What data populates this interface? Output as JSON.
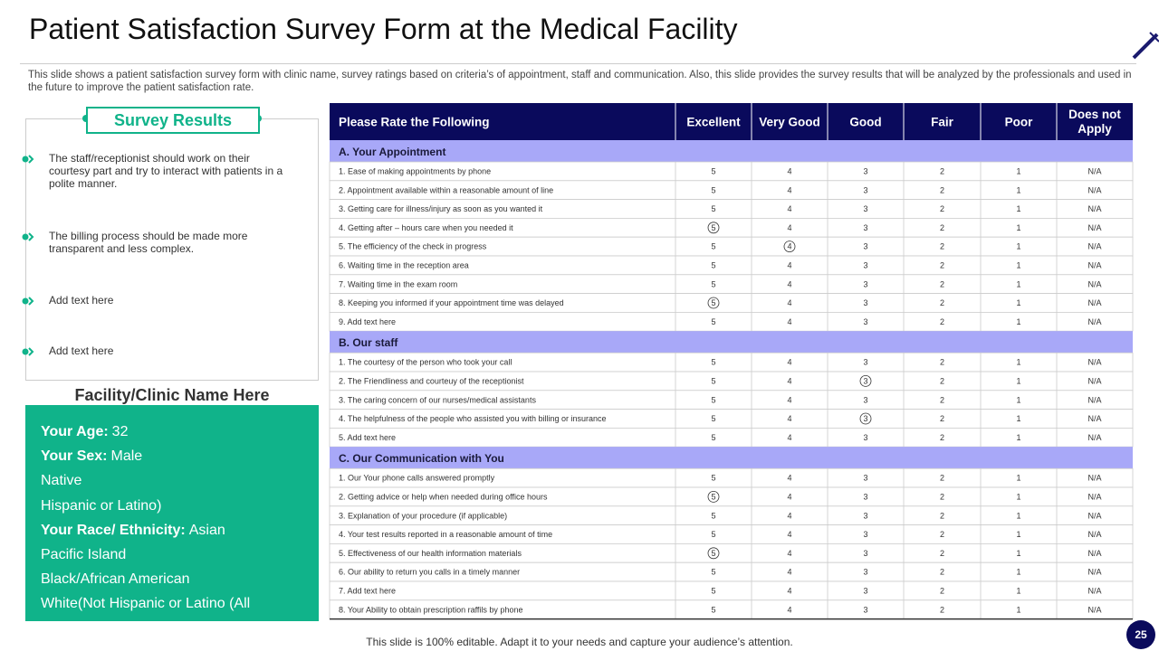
{
  "title": "Patient Satisfaction Survey Form at the Medical Facility",
  "description": "This slide shows a patient satisfaction survey form with clinic name, survey ratings based on criteria’s of appointment, staff and communication. Also, this slide provides the survey results that will be analyzed by the professionals and used in the future to improve the patient satisfaction rate.",
  "survey_results": {
    "heading": "Survey Results",
    "items": [
      "The staff/receptionist should work on their courtesy part and try to interact with patients in a polite manner.",
      "The billing process should be made more transparent and less complex.",
      "Add text here",
      "Add text here"
    ]
  },
  "facility": {
    "name": "Facility/Clinic Name Here",
    "lines": [
      {
        "label": "Your Age:",
        "value": "32"
      },
      {
        "label": "Your Sex:",
        "value": "Male"
      },
      {
        "value": "Native"
      },
      {
        "value": "Hispanic or Latino)"
      },
      {
        "label": "Your Race/ Ethnicity:",
        "value": "Asian"
      },
      {
        "value": "Pacific Island"
      },
      {
        "value": "Black/African American"
      },
      {
        "value": "White(Not Hispanic or Latino (All"
      }
    ]
  },
  "table": {
    "columns": [
      "Please Rate the Following",
      "Excellent",
      "Very Good",
      "Good",
      "Fair",
      "Poor",
      "Does not Apply"
    ],
    "sections": [
      {
        "title": "A. Your Appointment",
        "rows": [
          {
            "label": "1. Ease of making appointments by phone",
            "ratings": [
              "5",
              "4",
              "3",
              "2",
              "1",
              "N/A"
            ]
          },
          {
            "label": "2. Appointment available within a reasonable amount of line",
            "ratings": [
              "5",
              "4",
              "3",
              "2",
              "1",
              "N/A"
            ]
          },
          {
            "label": "3. Getting care for illness/injury as soon as you wanted it",
            "ratings": [
              "5",
              "4",
              "3",
              "2",
              "1",
              "N/A"
            ]
          },
          {
            "label": "4. Getting after – hours care when you needed it",
            "ratings": [
              "5",
              "4",
              "3",
              "2",
              "1",
              "N/A"
            ],
            "circled": "5"
          },
          {
            "label": "5. The efficiency of the check in progress",
            "ratings": [
              "5",
              "4",
              "3",
              "2",
              "1",
              "N/A"
            ],
            "circled": "4"
          },
          {
            "label": "6. Waiting time in the reception area",
            "ratings": [
              "5",
              "4",
              "3",
              "2",
              "1",
              "N/A"
            ]
          },
          {
            "label": "7. Waiting time in the exam room",
            "ratings": [
              "5",
              "4",
              "3",
              "2",
              "1",
              "N/A"
            ]
          },
          {
            "label": "8. Keeping you informed if your appointment time was delayed",
            "ratings": [
              "5",
              "4",
              "3",
              "2",
              "1",
              "N/A"
            ],
            "circled": "5"
          },
          {
            "label": "9. Add text here",
            "ratings": [
              "5",
              "4",
              "3",
              "2",
              "1",
              "N/A"
            ]
          }
        ]
      },
      {
        "title": "B. Our staff",
        "rows": [
          {
            "label": "1. The courtesy of the person who took your call",
            "ratings": [
              "5",
              "4",
              "3",
              "2",
              "1",
              "N/A"
            ]
          },
          {
            "label": "2. The Friendliness and courteuy of the receptionist",
            "ratings": [
              "5",
              "4",
              "3",
              "2",
              "1",
              "N/A"
            ],
            "circled": "3"
          },
          {
            "label": "3. The caring concern of our nurses/medical assistants",
            "ratings": [
              "5",
              "4",
              "3",
              "2",
              "1",
              "N/A"
            ]
          },
          {
            "label": "4. The helpfulness of the people who assisted you with billing or insurance",
            "ratings": [
              "5",
              "4",
              "3",
              "2",
              "1",
              "N/A"
            ],
            "circled": "3"
          },
          {
            "label": "5. Add text here",
            "ratings": [
              "5",
              "4",
              "3",
              "2",
              "1",
              "N/A"
            ]
          }
        ]
      },
      {
        "title": "C. Our Communication with You",
        "rows": [
          {
            "label": "1. Our Your phone calls answered promptly",
            "ratings": [
              "5",
              "4",
              "3",
              "2",
              "1",
              "N/A"
            ]
          },
          {
            "label": "2. Getting advice or help when needed during office hours",
            "ratings": [
              "5",
              "4",
              "3",
              "2",
              "1",
              "N/A"
            ],
            "circled": "5"
          },
          {
            "label": "3. Explanation of your procedure (if applicable)",
            "ratings": [
              "5",
              "4",
              "3",
              "2",
              "1",
              "N/A"
            ]
          },
          {
            "label": "4. Your test results reported in a reasonable amount of time",
            "ratings": [
              "5",
              "4",
              "3",
              "2",
              "1",
              "N/A"
            ]
          },
          {
            "label": "5. Effectiveness of our health information materials",
            "ratings": [
              "5",
              "4",
              "3",
              "2",
              "1",
              "N/A"
            ],
            "circled": "5"
          },
          {
            "label": "6. Our ability to return you calls in a timely manner",
            "ratings": [
              "5",
              "4",
              "3",
              "2",
              "1",
              "N/A"
            ]
          },
          {
            "label": "7. Add text here",
            "ratings": [
              "5",
              "4",
              "3",
              "2",
              "1",
              "N/A"
            ]
          },
          {
            "label": "8. Your Ability to obtain prescription raffils by phone",
            "ratings": [
              "5",
              "4",
              "3",
              "2",
              "1",
              "N/A"
            ]
          }
        ]
      }
    ]
  },
  "footer": "This slide is 100% editable. Adapt it to your needs and capture your audience’s attention.",
  "page_number": "25"
}
